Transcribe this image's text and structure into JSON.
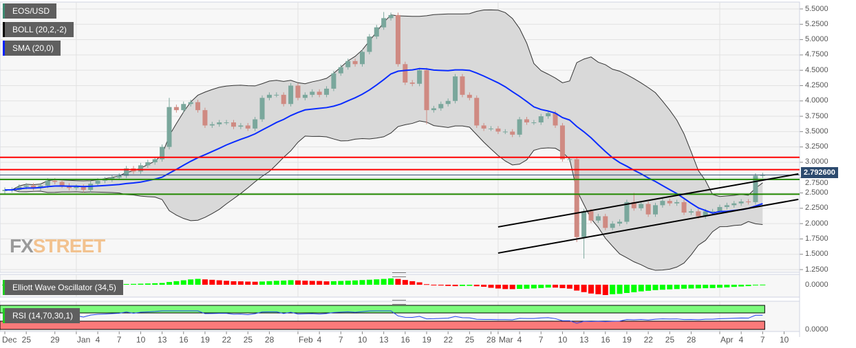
{
  "legends": {
    "main": {
      "label": "EOS/USD",
      "color": "#3c8a72"
    },
    "boll": {
      "label": "BOLL (20,2,-2)",
      "color": "#000000"
    },
    "sma": {
      "label": "SMA (20,0)",
      "color": "#0022ff"
    },
    "ewo": {
      "label": "Elliott Wave Oscillator (34,5)",
      "color": "#22cc22"
    },
    "rsi": {
      "label": "RSI (14,70,30,1)",
      "color": "#22cc22"
    }
  },
  "watermark": {
    "part1": "FX",
    "part2": "STREET"
  },
  "current_price": "2.792600",
  "chart_data": {
    "type": "candlestick",
    "start_date": "2018-12-22",
    "closes": [
      2.55,
      2.55,
      2.6,
      2.62,
      2.58,
      2.62,
      2.7,
      2.68,
      2.62,
      2.58,
      2.6,
      2.55,
      2.65,
      2.7,
      2.72,
      2.75,
      2.78,
      2.9,
      2.85,
      2.95,
      3.0,
      3.05,
      3.25,
      3.9,
      3.85,
      3.95,
      3.98,
      3.85,
      3.6,
      3.62,
      3.65,
      3.65,
      3.58,
      3.6,
      3.55,
      3.7,
      4.05,
      4.1,
      4.1,
      3.95,
      4.25,
      4.05,
      4.1,
      4.15,
      4.1,
      4.2,
      4.45,
      4.55,
      4.65,
      4.6,
      4.8,
      5.05,
      5.2,
      5.35,
      5.4,
      4.6,
      4.3,
      4.28,
      4.5,
      3.85,
      3.88,
      3.95,
      4.0,
      4.4,
      4.1,
      4.05,
      3.6,
      3.55,
      3.55,
      3.5,
      3.5,
      3.45,
      3.7,
      3.65,
      3.65,
      3.75,
      3.8,
      3.6,
      3.05,
      3.05,
      1.78,
      2.2,
      2.05,
      2.12,
      1.93,
      2.0,
      2.03,
      2.35,
      2.25,
      2.32,
      2.15,
      2.3,
      2.37,
      2.33,
      2.35,
      2.18,
      2.2,
      2.12,
      2.2,
      2.2,
      2.27,
      2.3,
      2.33,
      2.36,
      2.35,
      2.78,
      2.79
    ],
    "wick_extremes": {
      "2019-01-14": {
        "high": 4.05
      },
      "2019-02-13": {
        "high": 5.45
      },
      "2019-02-19": {
        "low": 3.62
      },
      "2019-03-12": {
        "low": 1.7
      },
      "2019-03-13": {
        "low": 1.43
      },
      "2019-03-20": {
        "high": 2.5
      }
    },
    "y_axis": {
      "min": 1.25,
      "max": 5.5,
      "ticks": [
        "5.5000",
        "5.2500",
        "5.0000",
        "4.7500",
        "4.5000",
        "4.2500",
        "4.0000",
        "3.7500",
        "3.5000",
        "3.2500",
        "3.0000",
        "2.7500",
        "2.5000",
        "2.2500",
        "2.0000",
        "1.7500",
        "1.5000",
        "1.2500"
      ]
    },
    "x_ticks": [
      {
        "label": "Dec",
        "date": "2018-12-22"
      },
      {
        "label": "25",
        "date": "2018-12-25"
      },
      {
        "label": "29",
        "date": "2018-12-29"
      },
      {
        "label": "Jan",
        "date": "2019-01-01"
      },
      {
        "label": "4",
        "date": "2019-01-04"
      },
      {
        "label": "7",
        "date": "2019-01-07"
      },
      {
        "label": "10",
        "date": "2019-01-10"
      },
      {
        "label": "13",
        "date": "2019-01-13"
      },
      {
        "label": "16",
        "date": "2019-01-16"
      },
      {
        "label": "19",
        "date": "2019-01-19"
      },
      {
        "label": "22",
        "date": "2019-01-22"
      },
      {
        "label": "25",
        "date": "2019-01-25"
      },
      {
        "label": "28",
        "date": "2019-01-28"
      },
      {
        "label": "Feb",
        "date": "2019-02-01"
      },
      {
        "label": "4",
        "date": "2019-02-04"
      },
      {
        "label": "7",
        "date": "2019-02-07"
      },
      {
        "label": "10",
        "date": "2019-02-10"
      },
      {
        "label": "13",
        "date": "2019-02-13"
      },
      {
        "label": "16",
        "date": "2019-02-16"
      },
      {
        "label": "19",
        "date": "2019-02-19"
      },
      {
        "label": "22",
        "date": "2019-02-22"
      },
      {
        "label": "25",
        "date": "2019-02-25"
      },
      {
        "label": "28",
        "date": "2019-02-28"
      },
      {
        "label": "Mar",
        "date": "2019-03-01"
      },
      {
        "label": "4",
        "date": "2019-03-04"
      },
      {
        "label": "7",
        "date": "2019-03-07"
      },
      {
        "label": "10",
        "date": "2019-03-10"
      },
      {
        "label": "13",
        "date": "2019-03-13"
      },
      {
        "label": "16",
        "date": "2019-03-16"
      },
      {
        "label": "19",
        "date": "2019-03-19"
      },
      {
        "label": "22",
        "date": "2019-03-22"
      },
      {
        "label": "25",
        "date": "2019-03-25"
      },
      {
        "label": "28",
        "date": "2019-03-28"
      },
      {
        "label": "Apr",
        "date": "2019-04-01"
      },
      {
        "label": "4",
        "date": "2019-04-04"
      },
      {
        "label": "7",
        "date": "2019-04-07"
      },
      {
        "label": "10",
        "date": "2019-04-10"
      }
    ],
    "horizontal_levels": [
      {
        "price": 3.08,
        "color": "#ff0000"
      },
      {
        "price": 2.88,
        "color": "#ff0000"
      },
      {
        "price": 2.72,
        "color": "#228800"
      },
      {
        "price": 2.48,
        "color": "#228800"
      }
    ],
    "trend_lines": [
      {
        "from": [
          "2019-03-01",
          1.946
        ],
        "to": [
          "2019-04-12",
          2.81
        ]
      },
      {
        "from": [
          "2019-03-01",
          1.52
        ],
        "to": [
          "2019-04-12",
          2.395
        ]
      }
    ],
    "indicators": {
      "sma_period": 20,
      "boll_k": 2,
      "ewo_fast": 5,
      "ewo_slow": 34,
      "rsi_period": 14,
      "rsi_upper": 70,
      "rsi_lower": 30
    },
    "ewo_axis_label": "0.0000",
    "rsi_axis_label": "0.0000",
    "colors": {
      "up": "#7aa79c",
      "down": "#cf8a82",
      "sma": "#0a2cff",
      "band_fill": "#d9d9d9",
      "ewo_up": "#00ff00",
      "ewo_down": "#ff0000",
      "rsi_line": "#2244ee",
      "rsi_over": "#7dfa7d",
      "rsi_under": "#fb7a7a"
    }
  }
}
